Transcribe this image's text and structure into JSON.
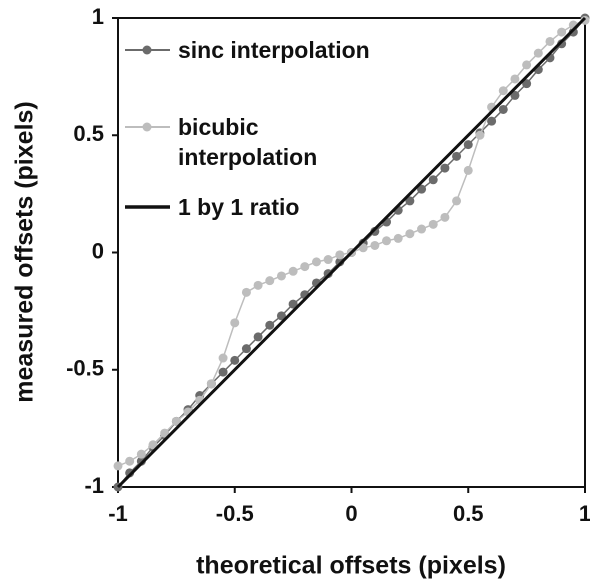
{
  "chart_data": {
    "type": "line",
    "xlabel": "theoretical offsets (pixels)",
    "ylabel": "measured offsets (pixels)",
    "xlim": [
      -1,
      1
    ],
    "ylim": [
      -1,
      1
    ],
    "xticks": [
      -1,
      -0.5,
      0,
      0.5,
      1
    ],
    "yticks": [
      -1,
      -0.5,
      0,
      0.5,
      1
    ],
    "grid": false,
    "legend": "upper left",
    "series": [
      {
        "name": "sinc interpolation",
        "color": "#6b6b6b",
        "markers": true,
        "x": [
          -1,
          -0.95,
          -0.9,
          -0.85,
          -0.8,
          -0.75,
          -0.7,
          -0.65,
          -0.6,
          -0.55,
          -0.5,
          -0.45,
          -0.4,
          -0.35,
          -0.3,
          -0.25,
          -0.2,
          -0.15,
          -0.1,
          -0.05,
          0,
          0.05,
          0.1,
          0.15,
          0.2,
          0.25,
          0.3,
          0.35,
          0.4,
          0.45,
          0.5,
          0.55,
          0.6,
          0.65,
          0.7,
          0.75,
          0.8,
          0.85,
          0.9,
          0.95,
          1
        ],
        "values": [
          -1,
          -0.94,
          -0.89,
          -0.83,
          -0.78,
          -0.72,
          -0.67,
          -0.61,
          -0.56,
          -0.51,
          -0.46,
          -0.41,
          -0.36,
          -0.31,
          -0.27,
          -0.22,
          -0.18,
          -0.13,
          -0.09,
          -0.04,
          0,
          0.04,
          0.09,
          0.13,
          0.18,
          0.22,
          0.27,
          0.31,
          0.36,
          0.41,
          0.46,
          0.51,
          0.56,
          0.61,
          0.67,
          0.72,
          0.78,
          0.83,
          0.89,
          0.94,
          1
        ]
      },
      {
        "name": "bicubic interpolation",
        "color": "#bdbdbd",
        "markers": true,
        "x": [
          -1,
          -0.95,
          -0.9,
          -0.85,
          -0.8,
          -0.75,
          -0.7,
          -0.65,
          -0.6,
          -0.55,
          -0.5,
          -0.45,
          -0.4,
          -0.35,
          -0.3,
          -0.25,
          -0.2,
          -0.15,
          -0.1,
          -0.05,
          0,
          0.05,
          0.1,
          0.15,
          0.2,
          0.25,
          0.3,
          0.35,
          0.4,
          0.45,
          0.5,
          0.55,
          0.6,
          0.65,
          0.7,
          0.75,
          0.8,
          0.85,
          0.9,
          0.95,
          1
        ],
        "values": [
          -0.91,
          -0.89,
          -0.86,
          -0.82,
          -0.77,
          -0.72,
          -0.68,
          -0.63,
          -0.56,
          -0.45,
          -0.3,
          -0.17,
          -0.14,
          -0.12,
          -0.1,
          -0.08,
          -0.06,
          -0.04,
          -0.03,
          -0.01,
          0,
          0.02,
          0.03,
          0.05,
          0.06,
          0.08,
          0.1,
          0.12,
          0.15,
          0.22,
          0.35,
          0.5,
          0.62,
          0.69,
          0.74,
          0.8,
          0.85,
          0.9,
          0.94,
          0.97,
          0.99
        ]
      },
      {
        "name": "1 by 1 ratio",
        "color": "#111111",
        "markers": false,
        "x": [
          -1,
          1
        ],
        "values": [
          -1,
          1
        ]
      }
    ]
  }
}
